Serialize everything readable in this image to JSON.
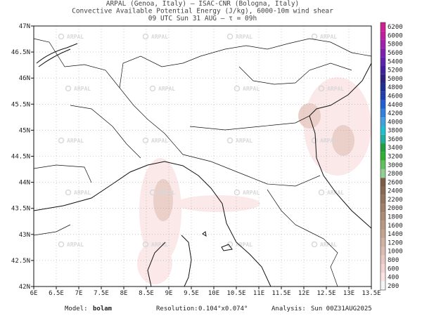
{
  "header": {
    "lines": [
      "ARPAL (Genoa, Italy)  –  ISAC-CNR (Bologna, Italy)",
      "Convective Available Potential Energy (J/kg), 6000-10m wind shear",
      "09 UTC Sun 31 AUG  –  τ = 09h"
    ]
  },
  "map": {
    "lat_labels": [
      "47N",
      "46.5N",
      "46N",
      "45.5N",
      "45N",
      "44.5N",
      "44N",
      "43.5N",
      "43N",
      "42.5N",
      "42N"
    ],
    "lon_labels": [
      "6E",
      "6.5E",
      "7E",
      "7.5E",
      "8E",
      "8.5E",
      "9E",
      "9.5E",
      "10E",
      "10.5E",
      "11E",
      "11.5E",
      "12E",
      "12.5E",
      "13E",
      "13.5E"
    ],
    "watermark": "ARPAL"
  },
  "colorbar": {
    "levels": [
      200,
      400,
      600,
      800,
      1000,
      1200,
      1400,
      1600,
      1800,
      2000,
      2200,
      2400,
      2600,
      2800,
      3000,
      3200,
      3400,
      3600,
      3800,
      4000,
      4200,
      4400,
      4600,
      4800,
      5000,
      5200,
      5400,
      5600,
      5800,
      6000,
      6200
    ],
    "colors": [
      "#f6f4f4",
      "#fbe4e4",
      "#f4d4d2",
      "#e8c8c0",
      "#dcbcb0",
      "#d0b0a0",
      "#c4a490",
      "#b89880",
      "#ac8c74",
      "#a08068",
      "#94745c",
      "#886850",
      "#7c5c44",
      "#90d090",
      "#60c060",
      "#30b030",
      "#20a040",
      "#20b0a0",
      "#20c0d0",
      "#40a0e0",
      "#3080e0",
      "#2060d0",
      "#2040b0",
      "#203090",
      "#302080",
      "#4020a0",
      "#6020b0",
      "#8020b0",
      "#a020b0",
      "#c020a0",
      "#d02090"
    ]
  },
  "footer": {
    "model_label": "Model:",
    "model": "bolam",
    "resolution_label": "Resolution:",
    "resolution": "0.104°x0.074°",
    "analysis_label": "Analysis:",
    "analysis": "Sun 00Z31AUG2025"
  }
}
